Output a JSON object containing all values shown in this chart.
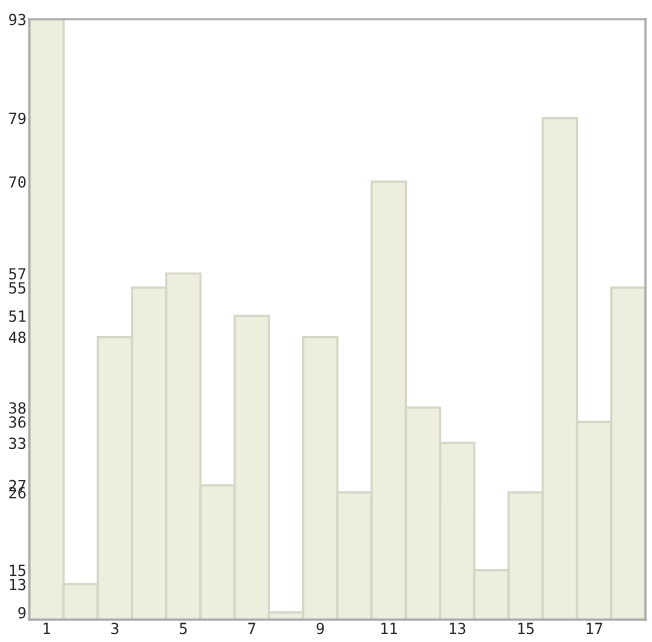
{
  "chart_data": {
    "type": "bar",
    "categories": [
      "1",
      null,
      "3",
      null,
      "5",
      null,
      "7",
      null,
      "9",
      null,
      "11",
      null,
      "13",
      null,
      "15",
      null,
      "17",
      null
    ],
    "values": [
      93,
      13,
      48,
      55,
      57,
      27,
      51,
      9,
      48,
      26,
      70,
      38,
      33,
      15,
      26,
      79,
      36,
      55
    ],
    "color": "#eeeedf",
    "ylim": [
      8,
      93
    ],
    "yticks": [
      9,
      13,
      15,
      26,
      27,
      33,
      36,
      38,
      48,
      51,
      55,
      57,
      70,
      79,
      93
    ],
    "grid": false,
    "legend": false
  }
}
